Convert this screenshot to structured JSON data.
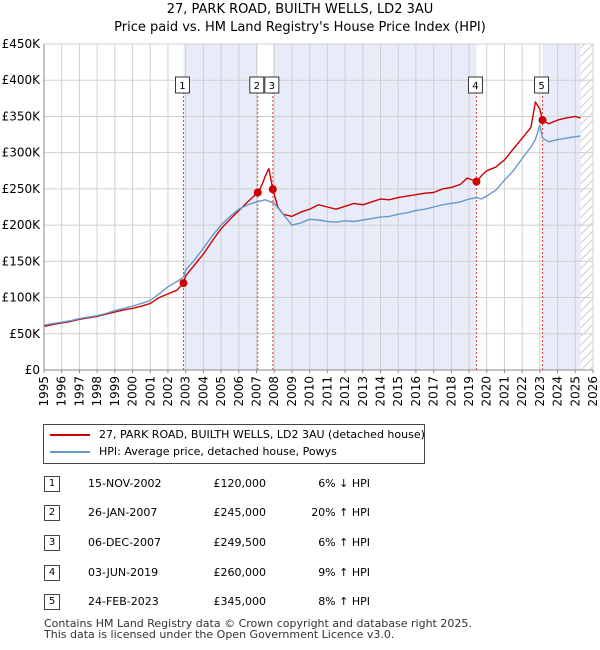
{
  "title": "27, PARK ROAD, BUILTH WELLS, LD2 3AU",
  "subtitle": "Price paid vs. HM Land Registry's House Price Index (HPI)",
  "chart_data": {
    "type": "line",
    "x_range": [
      1995,
      2026
    ],
    "ylim": [
      0,
      450000
    ],
    "y_ticks": [
      {
        "value": 0,
        "label": "£0"
      },
      {
        "value": 50000,
        "label": "£50K"
      },
      {
        "value": 100000,
        "label": "£100K"
      },
      {
        "value": 150000,
        "label": "£150K"
      },
      {
        "value": 200000,
        "label": "£200K"
      },
      {
        "value": 250000,
        "label": "£250K"
      },
      {
        "value": 300000,
        "label": "£300K"
      },
      {
        "value": 350000,
        "label": "£350K"
      },
      {
        "value": 400000,
        "label": "£400K"
      },
      {
        "value": 450000,
        "label": "£450K"
      }
    ],
    "x_ticks": [
      "1995",
      "1996",
      "1997",
      "1998",
      "1999",
      "2000",
      "2001",
      "2002",
      "2003",
      "2004",
      "2005",
      "2006",
      "2007",
      "2008",
      "2009",
      "2010",
      "2011",
      "2012",
      "2013",
      "2014",
      "2015",
      "2016",
      "2017",
      "2018",
      "2019",
      "2020",
      "2021",
      "2022",
      "2023",
      "2024",
      "2025",
      "2026"
    ],
    "grid": true,
    "ownership_shading": [
      [
        2002.875,
        2007.07
      ],
      [
        2007.92,
        2019.42
      ],
      [
        2023.15,
        2025.3
      ]
    ],
    "future_hatch_from": 2025.3,
    "series": [
      {
        "name": "27, PARK ROAD, BUILTH WELLS, LD2 3AU (detached house)",
        "color": "#cc0000",
        "x": [
          1995.0,
          1995.5,
          1996.0,
          1996.5,
          1997.0,
          1997.5,
          1998.0,
          1998.5,
          1999.0,
          1999.5,
          2000.0,
          2000.5,
          2001.0,
          2001.5,
          2002.0,
          2002.5,
          2002.875,
          2003.0,
          2003.5,
          2004.0,
          2004.5,
          2005.0,
          2005.5,
          2006.0,
          2006.5,
          2007.07,
          2007.3,
          2007.5,
          2007.7,
          2007.92,
          2008.2,
          2008.5,
          2009.0,
          2009.5,
          2010.0,
          2010.5,
          2011.0,
          2011.5,
          2012.0,
          2012.5,
          2013.0,
          2013.5,
          2014.0,
          2014.5,
          2015.0,
          2015.5,
          2016.0,
          2016.5,
          2017.0,
          2017.5,
          2018.0,
          2018.5,
          2018.9,
          2019.42,
          2019.7,
          2020.0,
          2020.5,
          2021.0,
          2021.5,
          2022.0,
          2022.5,
          2022.75,
          2023.0,
          2023.15,
          2023.5,
          2024.0,
          2024.5,
          2025.0,
          2025.3
        ],
        "y": [
          60000,
          63000,
          65000,
          67000,
          70000,
          72000,
          74000,
          77000,
          80000,
          83000,
          85000,
          88000,
          92000,
          100000,
          105000,
          110000,
          120000,
          130000,
          145000,
          160000,
          178000,
          195000,
          208000,
          220000,
          232000,
          245000,
          255000,
          268000,
          278000,
          249500,
          225000,
          215000,
          212000,
          218000,
          222000,
          228000,
          225000,
          222000,
          226000,
          230000,
          228000,
          232000,
          236000,
          235000,
          238000,
          240000,
          242000,
          244000,
          245000,
          250000,
          252000,
          256000,
          265000,
          260000,
          268000,
          275000,
          280000,
          290000,
          305000,
          320000,
          335000,
          370000,
          360000,
          345000,
          340000,
          345000,
          348000,
          350000,
          348000
        ]
      },
      {
        "name": "HPI: Average price, detached house, Powys",
        "color": "#6699cc",
        "x": [
          1995.0,
          1995.5,
          1996.0,
          1996.5,
          1997.0,
          1997.5,
          1998.0,
          1998.5,
          1999.0,
          1999.5,
          2000.0,
          2000.5,
          2001.0,
          2001.5,
          2002.0,
          2002.5,
          2002.875,
          2003.0,
          2003.5,
          2004.0,
          2004.5,
          2005.0,
          2005.5,
          2006.0,
          2006.5,
          2007.0,
          2007.5,
          2008.0,
          2008.5,
          2009.0,
          2009.5,
          2010.0,
          2010.5,
          2011.0,
          2011.5,
          2012.0,
          2012.5,
          2013.0,
          2013.5,
          2014.0,
          2014.5,
          2015.0,
          2015.5,
          2016.0,
          2016.5,
          2017.0,
          2017.5,
          2018.0,
          2018.5,
          2019.0,
          2019.42,
          2019.7,
          2020.0,
          2020.5,
          2021.0,
          2021.5,
          2022.0,
          2022.5,
          2022.75,
          2023.0,
          2023.15,
          2023.5,
          2024.0,
          2024.5,
          2025.0,
          2025.3
        ],
        "y": [
          62000,
          64000,
          66000,
          68000,
          71000,
          73000,
          75000,
          78000,
          82000,
          85000,
          88000,
          92000,
          96000,
          105000,
          115000,
          122000,
          128000,
          138000,
          152000,
          168000,
          185000,
          200000,
          212000,
          222000,
          228000,
          232000,
          235000,
          230000,
          215000,
          200000,
          203000,
          208000,
          207000,
          205000,
          204000,
          206000,
          205000,
          207000,
          209000,
          211000,
          212000,
          215000,
          217000,
          220000,
          222000,
          225000,
          228000,
          230000,
          232000,
          236000,
          238000,
          236000,
          240000,
          248000,
          262000,
          275000,
          292000,
          308000,
          318000,
          338000,
          320000,
          315000,
          318000,
          320000,
          322000,
          323000
        ]
      }
    ],
    "sale_markers": [
      {
        "label": "1",
        "x": 2002.875,
        "y": 120000
      },
      {
        "label": "2",
        "x": 2007.07,
        "y": 245000
      },
      {
        "label": "3",
        "x": 2007.92,
        "y": 249500
      },
      {
        "label": "4",
        "x": 2019.42,
        "y": 260000
      },
      {
        "label": "5",
        "x": 2023.15,
        "y": 345000
      }
    ]
  },
  "legend": {
    "items": [
      {
        "label": "27, PARK ROAD, BUILTH WELLS, LD2 3AU (detached house)",
        "color": "#cc0000"
      },
      {
        "label": "HPI: Average price, detached house, Powys",
        "color": "#6699cc"
      }
    ]
  },
  "sales": [
    {
      "num": "1",
      "date": "15-NOV-2002",
      "price": "£120,000",
      "hpi": "6% ↓ HPI"
    },
    {
      "num": "2",
      "date": "26-JAN-2007",
      "price": "£245,000",
      "hpi": "20% ↑ HPI"
    },
    {
      "num": "3",
      "date": "06-DEC-2007",
      "price": "£249,500",
      "hpi": "6% ↑ HPI"
    },
    {
      "num": "4",
      "date": "03-JUN-2019",
      "price": "£260,000",
      "hpi": "9% ↑ HPI"
    },
    {
      "num": "5",
      "date": "24-FEB-2023",
      "price": "£345,000",
      "hpi": "8% ↑ HPI"
    }
  ],
  "footer": {
    "line1": "Contains HM Land Registry data © Crown copyright and database right 2025.",
    "line2": "This data is licensed under the Open Government Licence v3.0."
  }
}
